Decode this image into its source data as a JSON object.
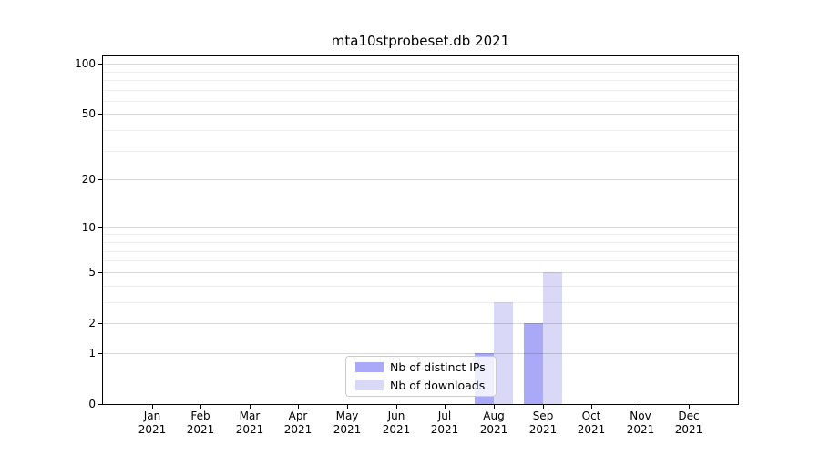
{
  "chart_data": {
    "type": "bar",
    "title": "mta10stprobeset.db 2021",
    "x_months": [
      "Jan",
      "Feb",
      "Mar",
      "Apr",
      "May",
      "Jun",
      "Jul",
      "Aug",
      "Sep",
      "Oct",
      "Nov",
      "Dec"
    ],
    "x_year": "2021",
    "series": [
      {
        "name": "Nb of distinct IPs",
        "color": "#a9a9f7",
        "values": [
          0,
          0,
          0,
          0,
          0,
          0,
          0,
          1,
          2,
          0,
          0,
          0
        ]
      },
      {
        "name": "Nb of downloads",
        "color": "#d9d9f7",
        "values": [
          0,
          0,
          0,
          0,
          0,
          0,
          0,
          3,
          5,
          0,
          0,
          0
        ]
      }
    ],
    "y_ticks": [
      0,
      1,
      2,
      5,
      10,
      20,
      50,
      100
    ],
    "y_minor_gridlines": [
      3,
      4,
      6,
      7,
      8,
      9,
      30,
      40,
      60,
      70,
      80,
      90
    ],
    "y_scale": "log1p",
    "ylim": [
      0,
      112
    ],
    "grid": "horizontal",
    "legend_position": "lower center",
    "xlabel": "",
    "ylabel": ""
  }
}
